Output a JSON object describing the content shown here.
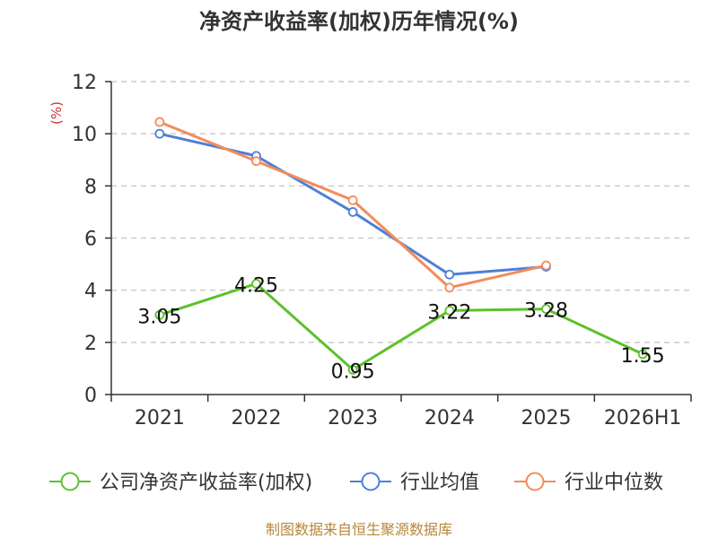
{
  "chart_data": {
    "type": "line",
    "title": "净资产收益率(加权)历年情况(%)",
    "ylabel": "(%)",
    "categories": [
      "2021",
      "2022",
      "2023",
      "2024",
      "2025",
      "2026H1"
    ],
    "ylim": [
      0,
      12
    ],
    "yticks": [
      0,
      2,
      4,
      6,
      8,
      10,
      12
    ],
    "grid": true,
    "legend_position": "bottom",
    "series": [
      {
        "name": "公司净资产收益率(加权)",
        "color": "#5cc12b",
        "values": [
          3.05,
          4.25,
          0.95,
          3.22,
          3.28,
          1.55
        ],
        "labels": [
          "3.05",
          "4.25",
          "0.95",
          "3.22",
          "3.28",
          "1.55"
        ]
      },
      {
        "name": "行业均值",
        "color": "#4f7fd6",
        "values": [
          10.0,
          9.15,
          7.0,
          4.6,
          4.9,
          null
        ]
      },
      {
        "name": "行业中位数",
        "color": "#f28c5a",
        "values": [
          10.45,
          8.95,
          7.45,
          4.1,
          4.95,
          null
        ]
      }
    ]
  },
  "source": "制图数据来自恒生聚源数据库"
}
